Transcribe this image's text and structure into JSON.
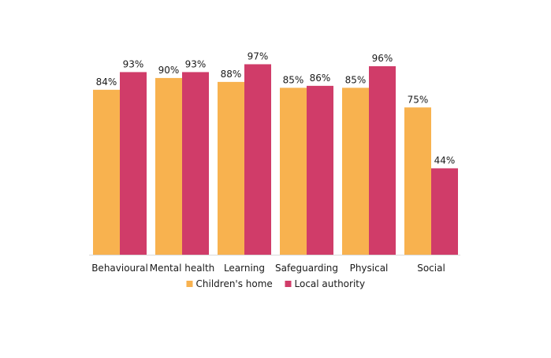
{
  "chart_data": {
    "type": "bar",
    "categories": [
      "Behavioural",
      "Mental health",
      "Learning",
      "Safeguarding",
      "Physical",
      "Social"
    ],
    "series": [
      {
        "name": "Children's home",
        "values": [
          84,
          90,
          88,
          85,
          85,
          75
        ],
        "color": "#F8B24F"
      },
      {
        "name": "Local authority",
        "values": [
          93,
          93,
          97,
          86,
          96,
          44
        ],
        "color": "#D03C69"
      }
    ],
    "value_suffix": "%",
    "ylim": [
      0,
      100
    ],
    "grid": false,
    "legend_position": "bottom",
    "title": "",
    "xlabel": "",
    "ylabel": ""
  }
}
